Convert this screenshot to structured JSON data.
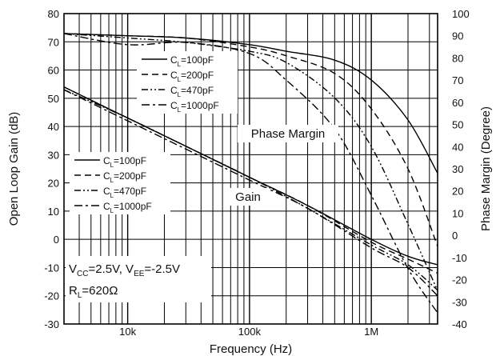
{
  "chart_data": {
    "type": "line",
    "title": "",
    "xlabel": "Frequency (Hz)",
    "ylabel": "Open Loop Gain (dB)",
    "ylabel_right": "Phase Margin (Degree)",
    "x_scale": "log",
    "xlim": [
      3000,
      3500000
    ],
    "ylim": [
      -30,
      80
    ],
    "ylim_right": [
      -40,
      100
    ],
    "x_ticks": [
      {
        "value": 10000,
        "label": "10k"
      },
      {
        "value": 100000,
        "label": "100k"
      },
      {
        "value": 1000000,
        "label": "1M"
      }
    ],
    "y_ticks": [
      "80",
      "70",
      "60",
      "50",
      "40",
      "30",
      "20",
      "10",
      "0",
      "-10",
      "-20",
      "-30"
    ],
    "y_ticks_right": [
      "100",
      "90",
      "80",
      "70",
      "60",
      "50",
      "40",
      "30",
      "20",
      "10",
      "0",
      "-10",
      "-20",
      "-30",
      "-40"
    ],
    "grid": true,
    "annotations": {
      "phase_label": "Phase Margin",
      "gain_label": "Gain",
      "conditions_line1": "V CC=2.5V, V EE=-2.5V",
      "conditions_line2": "R L=620Ω"
    },
    "phase_series": [
      {
        "name": "CL=100pF",
        "axis": "right",
        "x": [
          3000,
          10000,
          30000,
          100000,
          200000,
          500000,
          1000000,
          2000000,
          3500000
        ],
        "y": [
          91,
          90,
          89,
          86,
          83,
          79,
          70,
          52,
          28
        ]
      },
      {
        "name": "CL=200pF",
        "axis": "right",
        "x": [
          3000,
          10000,
          30000,
          100000,
          200000,
          500000,
          1000000,
          2000000,
          3500000
        ],
        "y": [
          91,
          90,
          89,
          85,
          81,
          73,
          57,
          30,
          -5
        ]
      },
      {
        "name": "CL=470pF",
        "axis": "right",
        "x": [
          3000,
          10000,
          30000,
          100000,
          200000,
          500000,
          1000000,
          2000000,
          3500000
        ],
        "y": [
          91,
          89,
          87,
          83,
          78,
          62,
          40,
          5,
          -25
        ]
      },
      {
        "name": "CL=1000pF",
        "axis": "right",
        "x": [
          3000,
          10000,
          30000,
          100000,
          200000,
          500000,
          1000000,
          2000000,
          3500000
        ],
        "y": [
          91,
          86,
          87,
          82,
          70,
          48,
          18,
          -15,
          -35
        ]
      }
    ],
    "gain_series": [
      {
        "name": "CL=100pF",
        "axis": "left",
        "x": [
          3000,
          10000,
          30000,
          100000,
          300000,
          1000000,
          2000000,
          3500000
        ],
        "y": [
          54,
          43,
          33,
          22,
          12,
          0,
          -6,
          -9
        ]
      },
      {
        "name": "CL=200pF",
        "axis": "left",
        "x": [
          3000,
          10000,
          30000,
          100000,
          300000,
          1000000,
          2000000,
          3500000
        ],
        "y": [
          54,
          43,
          33,
          22,
          12,
          -1,
          -7,
          -12
        ]
      },
      {
        "name": "CL=470pF",
        "axis": "left",
        "x": [
          3000,
          10000,
          30000,
          100000,
          300000,
          1000000,
          2000000,
          3500000
        ],
        "y": [
          53,
          43,
          33,
          22,
          11,
          -2,
          -9,
          -18
        ]
      },
      {
        "name": "CL=1000pF",
        "axis": "left",
        "x": [
          3000,
          10000,
          30000,
          100000,
          300000,
          1000000,
          2000000,
          3500000
        ],
        "y": [
          53,
          42,
          32,
          21,
          11,
          -3,
          -10,
          -20
        ]
      }
    ],
    "legend_phase": [
      {
        "label": "CL=100pF",
        "dash": "solid"
      },
      {
        "label": "CL=200pF",
        "dash": "dash"
      },
      {
        "label": "CL=470pF",
        "dash": "dashdotdot"
      },
      {
        "label": "CL=1000pF",
        "dash": "dashdot"
      }
    ],
    "legend_gain": [
      {
        "label": "CL=100pF",
        "dash": "solid"
      },
      {
        "label": "CL=200pF",
        "dash": "dash"
      },
      {
        "label": "CL=470pF",
        "dash": "dashdotdot"
      },
      {
        "label": "CL=1000pF",
        "dash": "dashdot"
      }
    ]
  }
}
